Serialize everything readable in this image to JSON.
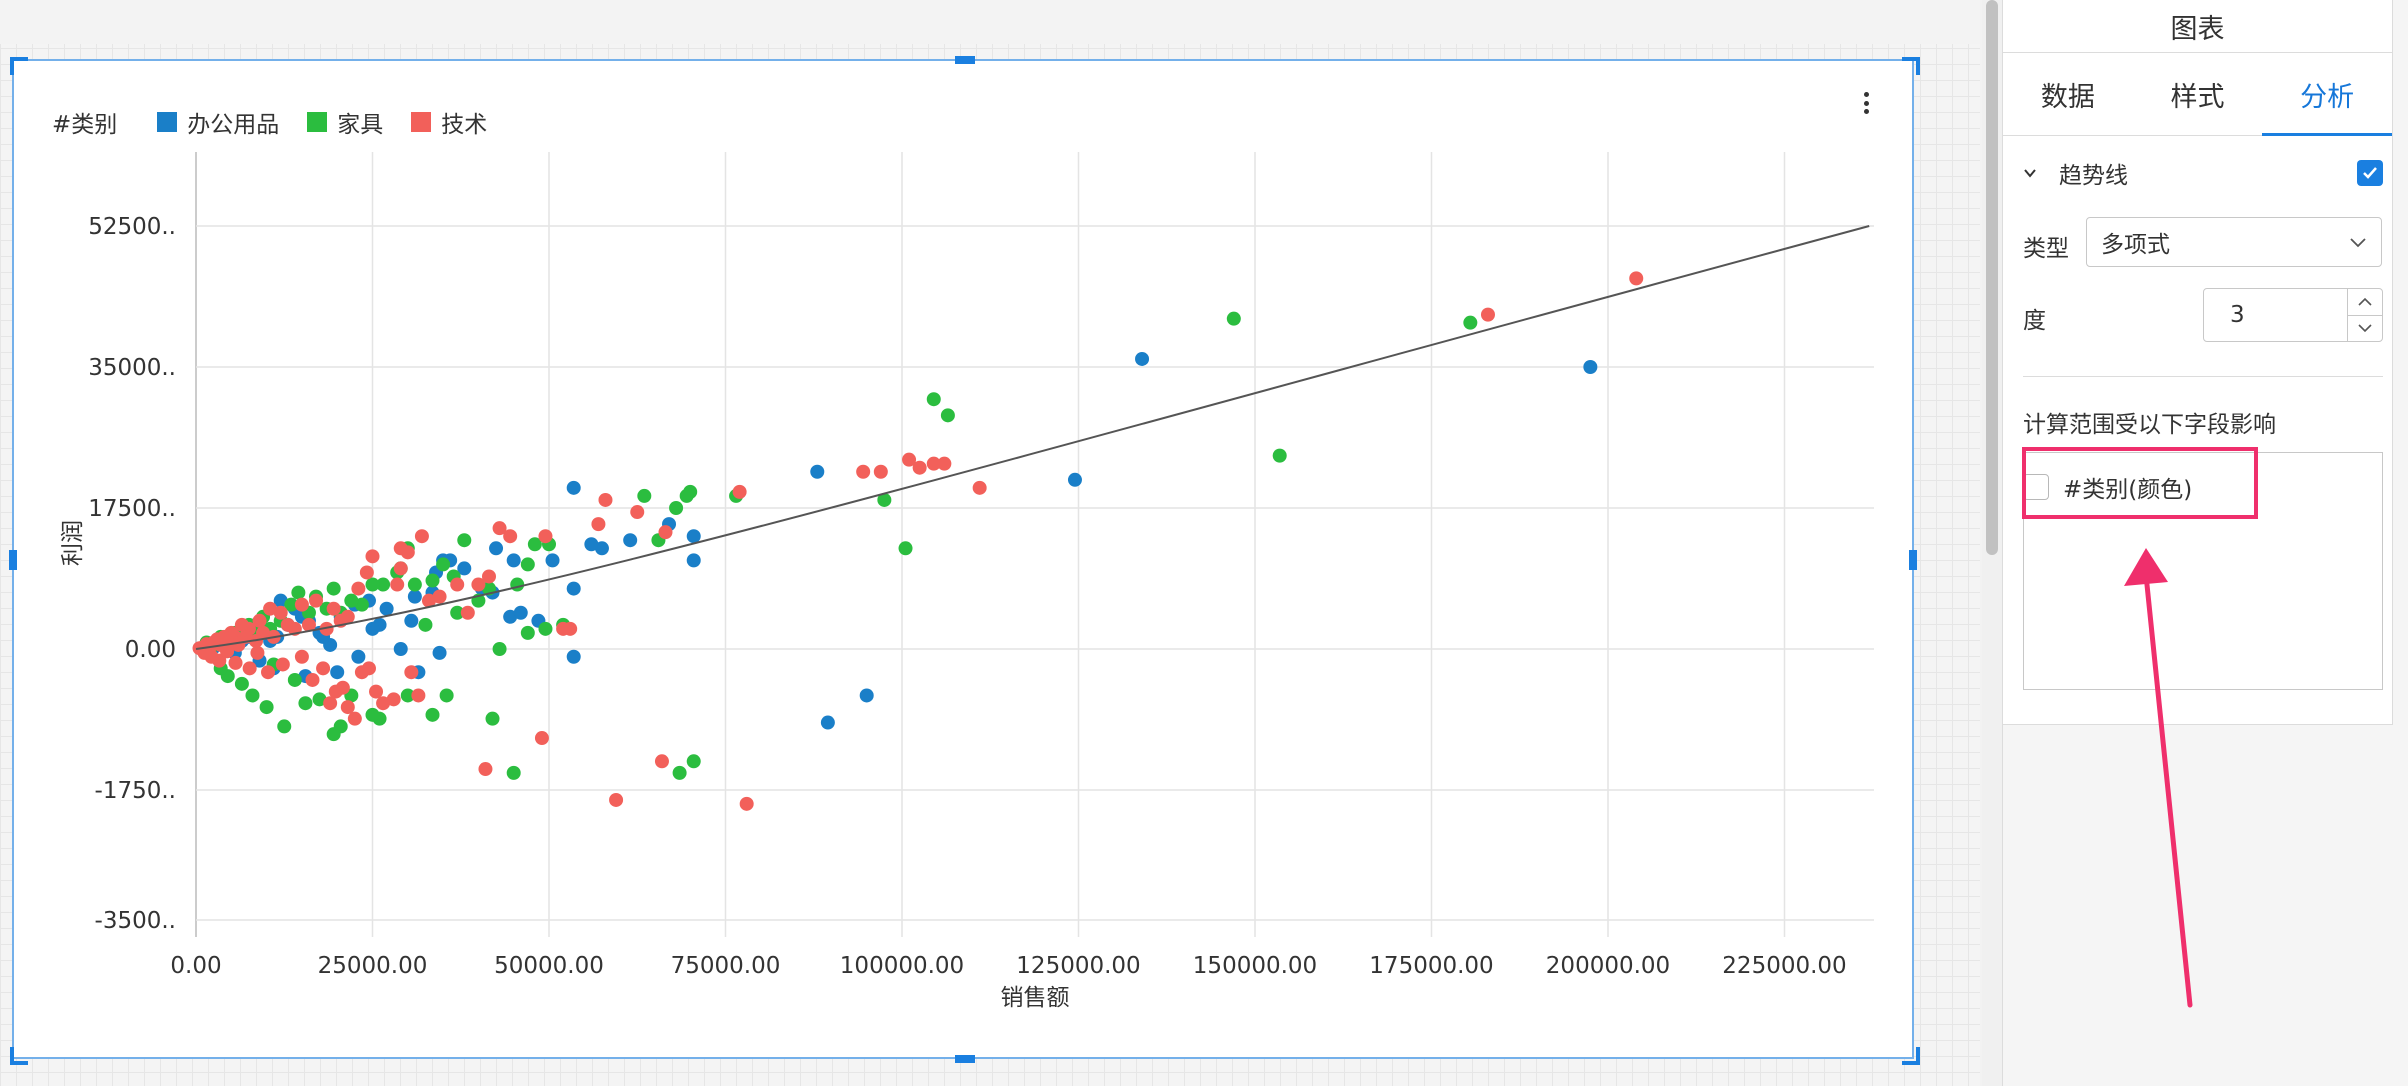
{
  "chart": {
    "legend_title": "#类别",
    "legend": [
      {
        "label": "办公用品",
        "color": "#1a7fc8"
      },
      {
        "label": "家具",
        "color": "#2bbd3f"
      },
      {
        "label": "技术",
        "color": "#f2605a"
      }
    ],
    "more_icon": "vertical-dots-icon"
  },
  "chart_data": {
    "type": "scatter",
    "title": "",
    "xlabel": "销售额",
    "ylabel": "利润",
    "x_ticks": [
      "0.00",
      "25000.00",
      "50000.00",
      "75000.00",
      "100000.00",
      "125000.00",
      "150000.00",
      "175000.00",
      "200000.00",
      "225000.00"
    ],
    "y_ticks": [
      "52500..",
      "35000..",
      "17500..",
      "0.00",
      "-1750..",
      "-3500.."
    ],
    "xlim": [
      0,
      237000
    ],
    "y_tick_order_top_to_bottom": true,
    "grid": true,
    "legend_position": "top-left",
    "trendline": {
      "type": "polynomial",
      "degree": 3,
      "start": [
        0,
        0.0
      ],
      "end": [
        237000,
        52500
      ]
    },
    "series": [
      {
        "name": "办公用品",
        "color": "#1a7fc8",
        "points": [
          [
            197500,
            35000
          ],
          [
            134000,
            36000
          ],
          [
            124500,
            21000
          ],
          [
            88000,
            22000
          ],
          [
            95000,
            -6000
          ],
          [
            89500,
            -9500
          ],
          [
            70500,
            11000
          ],
          [
            70500,
            14000
          ],
          [
            67000,
            15500
          ],
          [
            61500,
            13500
          ],
          [
            57500,
            12500
          ],
          [
            56000,
            13000
          ],
          [
            53500,
            20000
          ],
          [
            53500,
            7500
          ],
          [
            53500,
            -1000
          ],
          [
            50500,
            11000
          ],
          [
            45000,
            11000
          ],
          [
            42500,
            12500
          ],
          [
            42000,
            7000
          ],
          [
            40500,
            7500
          ],
          [
            38000,
            10000
          ],
          [
            36000,
            11000
          ],
          [
            35000,
            11000
          ],
          [
            34000,
            9500
          ],
          [
            33500,
            7000
          ],
          [
            31000,
            6500
          ],
          [
            30500,
            3500
          ],
          [
            27000,
            5000
          ],
          [
            26000,
            3000
          ],
          [
            25000,
            2500
          ],
          [
            24500,
            6000
          ],
          [
            22500,
            5500
          ],
          [
            20500,
            4000
          ],
          [
            19000,
            500
          ],
          [
            18000,
            1500
          ],
          [
            17500,
            2000
          ],
          [
            16000,
            3500
          ],
          [
            15000,
            4000
          ],
          [
            14000,
            5000
          ],
          [
            13000,
            3000
          ],
          [
            12000,
            6000
          ],
          [
            11500,
            1500
          ],
          [
            10500,
            1000
          ],
          [
            9500,
            2500
          ],
          [
            8500,
            3000
          ],
          [
            7500,
            1500
          ],
          [
            6500,
            1000
          ],
          [
            5500,
            -500
          ],
          [
            4500,
            500
          ],
          [
            3500,
            1000
          ],
          [
            2500,
            200
          ],
          [
            1500,
            500
          ],
          [
            29000,
            0
          ],
          [
            31500,
            -3000
          ],
          [
            34500,
            -500
          ],
          [
            44500,
            4000
          ],
          [
            48500,
            3500
          ],
          [
            46000,
            4500
          ],
          [
            23000,
            -1000
          ],
          [
            20000,
            -3000
          ],
          [
            15500,
            -3500
          ],
          [
            11000,
            -2500
          ],
          [
            9000,
            -1500
          ]
        ]
      },
      {
        "name": "家具",
        "color": "#2bbd3f",
        "points": [
          [
            147000,
            41000
          ],
          [
            153500,
            24000
          ],
          [
            180500,
            40500
          ],
          [
            106500,
            29000
          ],
          [
            104500,
            31000
          ],
          [
            97500,
            18500
          ],
          [
            100500,
            12500
          ],
          [
            76500,
            19000
          ],
          [
            70000,
            19500
          ],
          [
            69500,
            19000
          ],
          [
            68000,
            17500
          ],
          [
            63500,
            19000
          ],
          [
            65500,
            13500
          ],
          [
            68500,
            -16000
          ],
          [
            70500,
            -14500
          ],
          [
            50000,
            13000
          ],
          [
            48000,
            13000
          ],
          [
            47000,
            10500
          ],
          [
            45500,
            8000
          ],
          [
            41500,
            7500
          ],
          [
            38000,
            13500
          ],
          [
            36500,
            9000
          ],
          [
            35000,
            10500
          ],
          [
            33500,
            8500
          ],
          [
            31000,
            8000
          ],
          [
            30000,
            12500
          ],
          [
            29000,
            10000
          ],
          [
            28500,
            9500
          ],
          [
            26500,
            8000
          ],
          [
            25000,
            8000
          ],
          [
            23500,
            5500
          ],
          [
            22000,
            6000
          ],
          [
            20500,
            4500
          ],
          [
            19500,
            7500
          ],
          [
            18500,
            5000
          ],
          [
            17000,
            6500
          ],
          [
            16000,
            4500
          ],
          [
            14500,
            7000
          ],
          [
            13500,
            5500
          ],
          [
            12000,
            3500
          ],
          [
            10500,
            2500
          ],
          [
            9500,
            4000
          ],
          [
            8500,
            2000
          ],
          [
            7500,
            3000
          ],
          [
            6500,
            1500
          ],
          [
            5500,
            2000
          ],
          [
            4500,
            1000
          ],
          [
            3500,
            1500
          ],
          [
            2500,
            500
          ],
          [
            1500,
            800
          ],
          [
            45000,
            -16000
          ],
          [
            42000,
            -9000
          ],
          [
            35500,
            -6000
          ],
          [
            33500,
            -8500
          ],
          [
            30000,
            -6000
          ],
          [
            26000,
            -9000
          ],
          [
            25000,
            -8500
          ],
          [
            22000,
            -6000
          ],
          [
            20500,
            -10000
          ],
          [
            19500,
            -11000
          ],
          [
            17500,
            -6500
          ],
          [
            15500,
            -7000
          ],
          [
            14000,
            -4000
          ],
          [
            12500,
            -10000
          ],
          [
            11000,
            -2000
          ],
          [
            10000,
            -7500
          ],
          [
            8000,
            -6000
          ],
          [
            6500,
            -4500
          ],
          [
            4500,
            -3500
          ],
          [
            3500,
            -2500
          ],
          [
            43000,
            0
          ],
          [
            47000,
            2000
          ],
          [
            49500,
            2500
          ],
          [
            52000,
            3000
          ],
          [
            40000,
            6000
          ],
          [
            37000,
            4500
          ],
          [
            32500,
            3000
          ]
        ]
      },
      {
        "name": "技术",
        "color": "#f2605a",
        "points": [
          [
            204000,
            46000
          ],
          [
            183000,
            41500
          ],
          [
            111000,
            20000
          ],
          [
            106000,
            23000
          ],
          [
            104500,
            23000
          ],
          [
            102500,
            22500
          ],
          [
            101000,
            23500
          ],
          [
            97000,
            22000
          ],
          [
            94500,
            22000
          ],
          [
            77000,
            19500
          ],
          [
            78000,
            -20000
          ],
          [
            59500,
            -19500
          ],
          [
            66000,
            -14500
          ],
          [
            49000,
            -11500
          ],
          [
            41000,
            -15500
          ],
          [
            66500,
            14500
          ],
          [
            62500,
            17000
          ],
          [
            58000,
            18500
          ],
          [
            57000,
            15500
          ],
          [
            53000,
            2500
          ],
          [
            52000,
            2500
          ],
          [
            49500,
            14000
          ],
          [
            44500,
            14000
          ],
          [
            43000,
            15000
          ],
          [
            40000,
            8000
          ],
          [
            37000,
            8000
          ],
          [
            34500,
            6500
          ],
          [
            32000,
            14000
          ],
          [
            30000,
            12000
          ],
          [
            28500,
            8000
          ],
          [
            29000,
            12500
          ],
          [
            25000,
            11500
          ],
          [
            23000,
            7500
          ],
          [
            21500,
            4000
          ],
          [
            20500,
            3500
          ],
          [
            19500,
            5000
          ],
          [
            18500,
            2500
          ],
          [
            17000,
            6000
          ],
          [
            16000,
            3000
          ],
          [
            15000,
            5500
          ],
          [
            14000,
            2500
          ],
          [
            13000,
            3000
          ],
          [
            12000,
            4500
          ],
          [
            11000,
            1500
          ],
          [
            10500,
            5000
          ],
          [
            9500,
            2000
          ],
          [
            9000,
            3500
          ],
          [
            8500,
            1000
          ],
          [
            7500,
            2500
          ],
          [
            7000,
            1500
          ],
          [
            6500,
            3000
          ],
          [
            6000,
            500
          ],
          [
            5500,
            1500
          ],
          [
            5000,
            2000
          ],
          [
            4500,
            800
          ],
          [
            4000,
            1500
          ],
          [
            3500,
            500
          ],
          [
            3000,
            1200
          ],
          [
            2500,
            800
          ],
          [
            2000,
            300
          ],
          [
            1500,
            600
          ],
          [
            1000,
            200
          ],
          [
            500,
            100
          ],
          [
            1200,
            -500
          ],
          [
            2200,
            -1000
          ],
          [
            3300,
            -1500
          ],
          [
            4400,
            -300
          ],
          [
            5600,
            -1800
          ],
          [
            7600,
            -2500
          ],
          [
            8700,
            -500
          ],
          [
            10200,
            -3000
          ],
          [
            12300,
            -2000
          ],
          [
            15000,
            -1000
          ],
          [
            16500,
            -4000
          ],
          [
            18000,
            -2500
          ],
          [
            19000,
            -7000
          ],
          [
            19800,
            -5500
          ],
          [
            20800,
            -5000
          ],
          [
            21500,
            -7500
          ],
          [
            22500,
            -9000
          ],
          [
            23500,
            -3000
          ],
          [
            24500,
            -2500
          ],
          [
            25500,
            -5500
          ],
          [
            26500,
            -7000
          ],
          [
            28000,
            -6500
          ],
          [
            30500,
            -3000
          ],
          [
            31500,
            -6000
          ],
          [
            29000,
            10000
          ],
          [
            33000,
            6000
          ],
          [
            38500,
            4500
          ],
          [
            41500,
            9000
          ],
          [
            24200,
            9500
          ]
        ]
      }
    ]
  },
  "panel": {
    "title": "图表",
    "tabs": [
      "数据",
      "样式",
      "分析"
    ],
    "active_tab": 2,
    "trendline_label": "趋势线",
    "trendline_checked": true,
    "type_label": "类型",
    "type_value": "多项式",
    "degree_label": "度",
    "degree_value": "3",
    "scope_label": "计算范围受以下字段影响",
    "scope_item": "#类别(颜色)",
    "scope_item_checked": false
  },
  "colors": {
    "accent": "#1a7fe0",
    "annotation": "#ef2f6c"
  }
}
